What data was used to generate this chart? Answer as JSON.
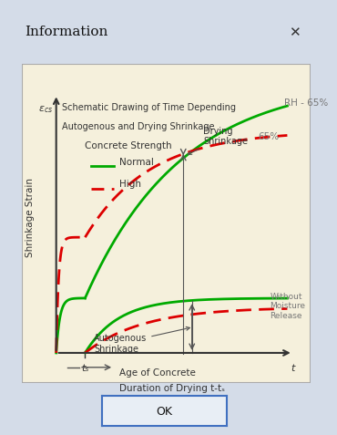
{
  "title": "Information",
  "subtitle_line1": "Schematic Drawing of Time Depending",
  "subtitle_line2": "Autogenous and Drying Shrinkage",
  "bg_color": "#f5f0dc",
  "outer_bg": "#d4dce8",
  "legend_normal_label": "Normal",
  "legend_high_label": "High",
  "legend_title": "Concrete Strength",
  "ylabel": "Shrinkage Strain",
  "yaxis_label": "ε_cs",
  "xlabel_line1": "Age of Concrete",
  "xlabel_line2": "Duration of Drying t-tₛ",
  "label_RH65": "RH - 65%",
  "label_65": "65%",
  "label_without": "Without\nMoisture\nRelease",
  "label_drying": "Drying\nShrinkage",
  "label_autogenous": "Autogenous\nShrinkage",
  "label_ts": "tₛ",
  "label_t": "t",
  "green_color": "#00aa00",
  "red_color": "#dd0000",
  "arrow_color": "#555555",
  "text_color": "#333333",
  "axis_color": "#333333"
}
